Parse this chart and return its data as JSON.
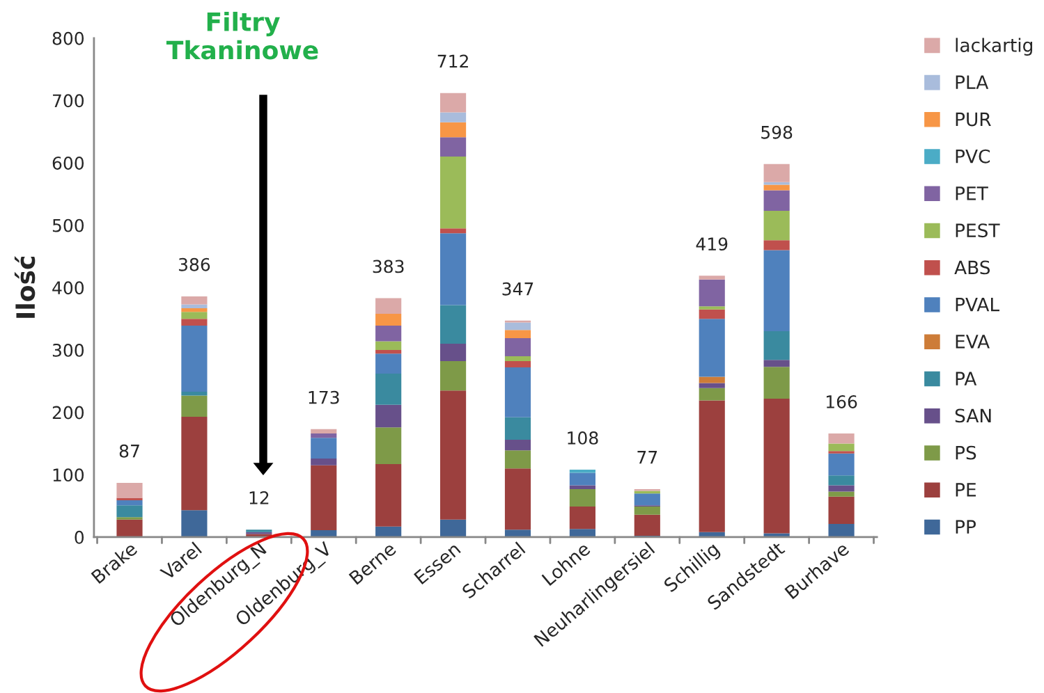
{
  "chart_data": {
    "type": "bar",
    "stacked": true,
    "ylabel": "Ilość",
    "categories": [
      "Brake",
      "Varel",
      "Oldenburg_N",
      "Oldenburg_V",
      "Berne",
      "Essen",
      "Scharrel",
      "Lohne",
      "Neuharlingersiel",
      "Schillig",
      "Sandstedt",
      "Burhave"
    ],
    "series": [
      {
        "name": "PP",
        "color": "#3f6899",
        "values": [
          null,
          43,
          null,
          11,
          17,
          28,
          12,
          13,
          2,
          8,
          6,
          21
        ]
      },
      {
        "name": "PE",
        "color": "#9c403e",
        "values": [
          28,
          150,
          5,
          104,
          100,
          207,
          98,
          36,
          34,
          211,
          216,
          44
        ]
      },
      {
        "name": "PS",
        "color": "#7e9a48",
        "values": [
          4,
          34,
          null,
          null,
          59,
          47,
          29,
          28,
          13,
          20,
          51,
          8
        ]
      },
      {
        "name": "SAN",
        "color": "#67508a",
        "values": [
          null,
          null,
          3,
          11,
          36,
          28,
          17,
          6,
          2,
          8,
          11,
          10
        ]
      },
      {
        "name": "PA",
        "color": "#3a8a9f",
        "values": [
          19,
          6,
          4,
          null,
          50,
          62,
          36,
          null,
          null,
          null,
          46,
          16
        ]
      },
      {
        "name": "EVA",
        "color": "#cd7c38",
        "values": [
          null,
          null,
          null,
          null,
          null,
          null,
          null,
          null,
          null,
          10,
          null,
          null
        ]
      },
      {
        "name": "PVAL",
        "color": "#4f81bd",
        "values": [
          8,
          106,
          null,
          33,
          32,
          115,
          80,
          20,
          19,
          93,
          130,
          35
        ]
      },
      {
        "name": "ABS",
        "color": "#c0504d",
        "values": [
          4,
          11,
          null,
          null,
          6,
          8,
          10,
          null,
          null,
          15,
          16,
          4
        ]
      },
      {
        "name": "PEST",
        "color": "#9bbb59",
        "values": [
          null,
          11,
          null,
          null,
          14,
          115,
          8,
          null,
          4,
          5,
          47,
          12
        ]
      },
      {
        "name": "PET",
        "color": "#8064a2",
        "values": [
          null,
          null,
          null,
          7,
          25,
          31,
          29,
          null,
          null,
          43,
          33,
          null
        ]
      },
      {
        "name": "PVC",
        "color": "#4bacc6",
        "values": [
          null,
          null,
          null,
          null,
          null,
          null,
          null,
          5,
          null,
          null,
          null,
          null
        ]
      },
      {
        "name": "PUR",
        "color": "#f79646",
        "values": [
          null,
          6,
          null,
          null,
          19,
          24,
          13,
          null,
          null,
          null,
          9,
          null
        ]
      },
      {
        "name": "PLA",
        "color": "#a9bcdc",
        "values": [
          null,
          6,
          null,
          null,
          null,
          16,
          12,
          null,
          null,
          null,
          4,
          null
        ]
      },
      {
        "name": "lackartig",
        "color": "#dba9a8",
        "values": [
          24,
          13,
          null,
          7,
          25,
          31,
          3,
          null,
          3,
          6,
          29,
          16
        ]
      }
    ],
    "totals": [
      "87",
      "386",
      "12",
      "173",
      "383",
      "712",
      "347",
      "108",
      "77",
      "419",
      "598",
      "166"
    ],
    "annotations": [
      "Filtry\nTkaninowe"
    ],
    "ylim": [
      0,
      800
    ],
    "yticks": [
      0,
      100,
      200,
      300,
      400,
      500,
      600,
      700,
      800
    ],
    "grid": false,
    "legend": "right"
  }
}
